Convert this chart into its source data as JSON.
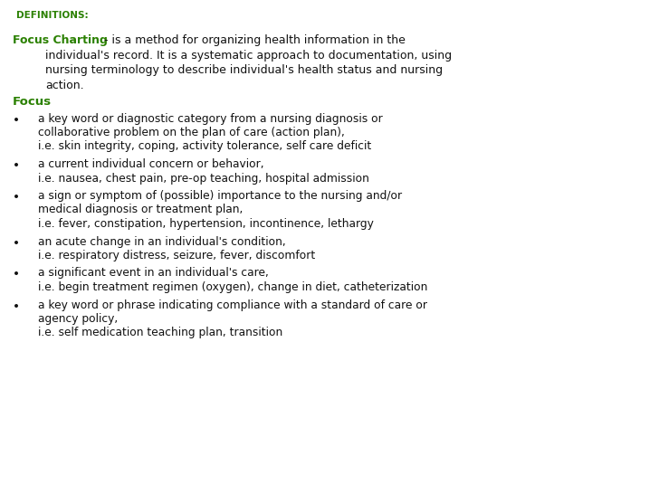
{
  "bg_color": "#ffffff",
  "green_color": "#2a8000",
  "black_color": "#111111",
  "definitions_label": "DEFINITIONS:",
  "focus_charting_bold": "Focus Charting",
  "focus_label": "Focus",
  "font_family": "DejaVu Sans",
  "definitions_fontsize": 7.5,
  "focus_charting_fontsize": 9.0,
  "focus_label_fontsize": 9.5,
  "bullet_fontsize": 8.8,
  "bullet_lines": [
    [
      "a key word or diagnostic category from a nursing diagnosis or",
      "collaborative problem on the plan of care (action plan),",
      "i.e. skin integrity, coping, activity tolerance, self care deficit"
    ],
    [
      "a current individual concern or behavior,",
      "i.e. nausea, chest pain, pre-op teaching, hospital admission"
    ],
    [
      "a sign or symptom of (possible) importance to the nursing and/or",
      "medical diagnosis or treatment plan,",
      "i.e. fever, constipation, hypertension, incontinence, lethargy"
    ],
    [
      "an acute change in an individual's condition,",
      "i.e. respiratory distress, seizure, fever, discomfort"
    ],
    [
      "a significant event in an individual's care,",
      "i.e. begin treatment regimen (oxygen), change in diet, catheterization"
    ],
    [
      "a key word or phrase indicating compliance with a standard of care or",
      "agency policy,",
      "i.e. self medication teaching plan, transition"
    ]
  ],
  "fc_line1": " - is a method for organizing health information in the",
  "fc_line2": "individual's record. It is a systematic approach to documentation, using",
  "fc_line3": "nursing terminology to describe individual's health status and nursing",
  "fc_line4": "action."
}
